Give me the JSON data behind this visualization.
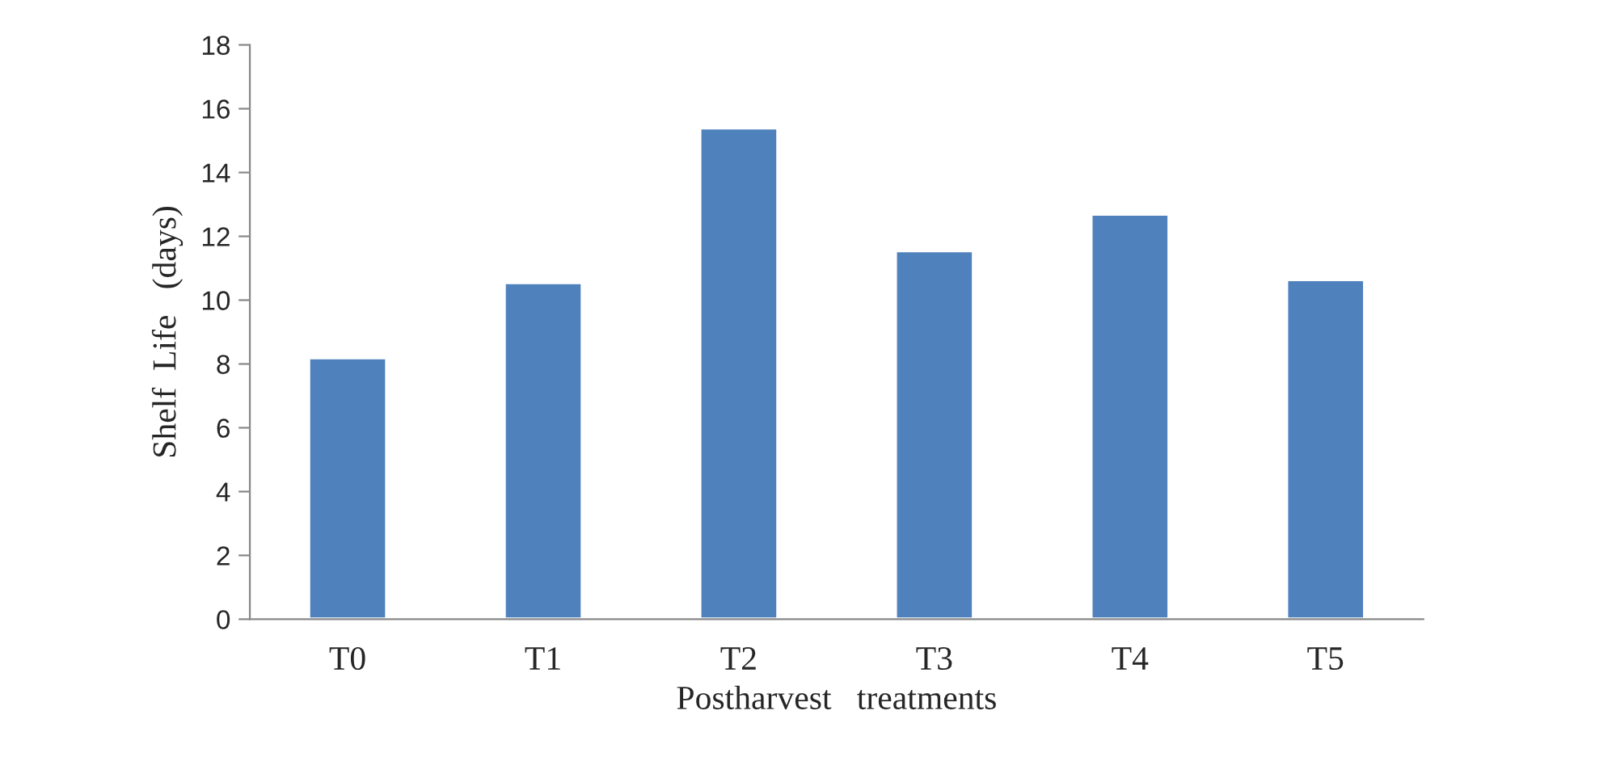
{
  "chart_data": {
    "type": "bar",
    "xlabel": "Postharvest   treatments",
    "ylabel": "Shelf  Life   (days)",
    "categories": [
      "T0",
      "T1",
      "T2",
      "T3",
      "T4",
      "T5"
    ],
    "values": [
      8.2,
      10.55,
      15.4,
      11.55,
      12.7,
      10.65
    ],
    "color": "#4f81bd",
    "ylim": [
      0,
      18
    ],
    "yticks": [
      0,
      2,
      4,
      6,
      8,
      10,
      12,
      14,
      16,
      18
    ],
    "grid": false,
    "legend": false
  }
}
